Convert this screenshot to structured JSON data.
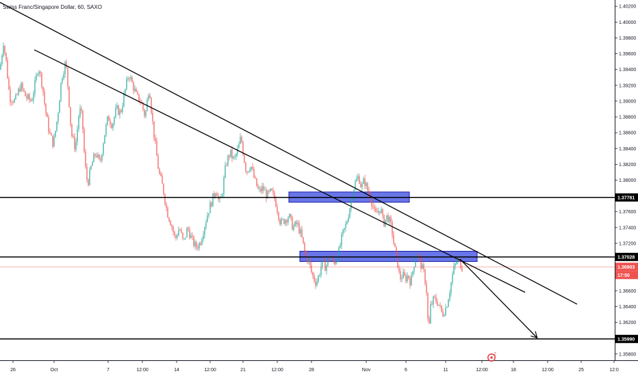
{
  "title": "Swiss Franc/Singapore Dollar, 60, SAXO",
  "colors": {
    "up": "#26a69a",
    "down": "#ef5350",
    "zone_fill": "#3d4fe0",
    "zone_stroke": "#1a1aa8",
    "line": "#000000",
    "current": "#ef5350",
    "grid": "#f0f3fa",
    "logo": "#e04545"
  },
  "chart_data": {
    "type": "candlestick",
    "symbol": "Swiss Franc/Singapore Dollar",
    "interval": "60",
    "source": "SAXO",
    "x_ticks": [
      "26",
      "Oct",
      "7",
      "12:00",
      "14",
      "12:00",
      "21",
      "12:00",
      "28",
      "Nov",
      "6",
      "11",
      "12:00",
      "18",
      "12:00",
      "25",
      "12:0"
    ],
    "y_ticks": [
      "1.40200",
      "1.40000",
      "1.39800",
      "1.39600",
      "1.39400",
      "1.39200",
      "1.39000",
      "1.38800",
      "1.38600",
      "1.38400",
      "1.38200",
      "1.38000",
      "1.37600",
      "1.37400",
      "1.37200",
      "1.36600",
      "1.36400",
      "1.36200",
      "1.35800"
    ],
    "ylim": [
      1.3572,
      1.4028
    ],
    "price_path": [
      [
        0,
        1.394
      ],
      [
        5,
        1.3975
      ],
      [
        9,
        1.395
      ],
      [
        14,
        1.3905
      ],
      [
        22,
        1.39
      ],
      [
        30,
        1.392
      ],
      [
        38,
        1.3905
      ],
      [
        46,
        1.39
      ],
      [
        52,
        1.3925
      ],
      [
        56,
        1.3945
      ],
      [
        62,
        1.392
      ],
      [
        66,
        1.389
      ],
      [
        72,
        1.386
      ],
      [
        78,
        1.3845
      ],
      [
        84,
        1.388
      ],
      [
        90,
        1.393
      ],
      [
        96,
        1.395
      ],
      [
        100,
        1.391
      ],
      [
        104,
        1.386
      ],
      [
        110,
        1.384
      ],
      [
        116,
        1.389
      ],
      [
        120,
        1.388
      ],
      [
        124,
        1.382
      ],
      [
        128,
        1.3795
      ],
      [
        134,
        1.382
      ],
      [
        140,
        1.3835
      ],
      [
        146,
        1.382
      ],
      [
        152,
        1.3855
      ],
      [
        158,
        1.388
      ],
      [
        164,
        1.387
      ],
      [
        170,
        1.389
      ],
      [
        176,
        1.3885
      ],
      [
        182,
        1.391
      ],
      [
        188,
        1.3935
      ],
      [
        194,
        1.392
      ],
      [
        200,
        1.3905
      ],
      [
        206,
        1.39
      ],
      [
        212,
        1.388
      ],
      [
        218,
        1.392
      ],
      [
        222,
        1.388
      ],
      [
        226,
        1.385
      ],
      [
        232,
        1.381
      ],
      [
        238,
        1.379
      ],
      [
        244,
        1.376
      ],
      [
        250,
        1.3745
      ],
      [
        256,
        1.3725
      ],
      [
        262,
        1.374
      ],
      [
        268,
        1.372
      ],
      [
        274,
        1.374
      ],
      [
        280,
        1.3725
      ],
      [
        286,
        1.3715
      ],
      [
        292,
        1.372
      ],
      [
        298,
        1.374
      ],
      [
        304,
        1.376
      ],
      [
        310,
        1.3775
      ],
      [
        316,
        1.379
      ],
      [
        320,
        1.377
      ],
      [
        324,
        1.378
      ],
      [
        330,
        1.382
      ],
      [
        336,
        1.3835
      ],
      [
        342,
        1.3825
      ],
      [
        348,
        1.384
      ],
      [
        352,
        1.3855
      ],
      [
        356,
        1.383
      ],
      [
        360,
        1.381
      ],
      [
        366,
        1.382
      ],
      [
        372,
        1.38
      ],
      [
        378,
        1.3785
      ],
      [
        384,
        1.379
      ],
      [
        390,
        1.378
      ],
      [
        396,
        1.3785
      ],
      [
        402,
        1.3775
      ],
      [
        406,
        1.376
      ],
      [
        410,
        1.3745
      ],
      [
        416,
        1.375
      ],
      [
        422,
        1.3755
      ],
      [
        428,
        1.374
      ],
      [
        434,
        1.3745
      ],
      [
        440,
        1.373
      ],
      [
        446,
        1.3705
      ],
      [
        450,
        1.37
      ],
      [
        456,
        1.368
      ],
      [
        462,
        1.367
      ],
      [
        466,
        1.368
      ],
      [
        470,
        1.3695
      ],
      [
        476,
        1.369
      ],
      [
        482,
        1.3705
      ],
      [
        488,
        1.3695
      ],
      [
        494,
        1.3705
      ],
      [
        500,
        1.373
      ],
      [
        506,
        1.3745
      ],
      [
        512,
        1.377
      ],
      [
        518,
        1.3795
      ],
      [
        524,
        1.3805
      ],
      [
        528,
        1.379
      ],
      [
        532,
        1.38
      ],
      [
        536,
        1.379
      ],
      [
        540,
        1.378
      ],
      [
        544,
        1.377
      ],
      [
        548,
        1.3755
      ],
      [
        552,
        1.376
      ],
      [
        556,
        1.3765
      ],
      [
        560,
        1.3745
      ],
      [
        566,
        1.3755
      ],
      [
        572,
        1.374
      ],
      [
        576,
        1.3715
      ],
      [
        580,
        1.37
      ],
      [
        584,
        1.3675
      ],
      [
        588,
        1.368
      ],
      [
        592,
        1.3675
      ],
      [
        596,
        1.368
      ],
      [
        600,
        1.367
      ],
      [
        604,
        1.369
      ],
      [
        608,
        1.371
      ],
      [
        612,
        1.37
      ],
      [
        616,
        1.369
      ],
      [
        620,
        1.368
      ],
      [
        623,
        1.366
      ],
      [
        626,
        1.3605
      ],
      [
        629,
        1.364
      ],
      [
        634,
        1.365
      ],
      [
        640,
        1.3645
      ],
      [
        646,
        1.363
      ],
      [
        652,
        1.364
      ],
      [
        658,
        1.3665
      ],
      [
        662,
        1.3685
      ],
      [
        668,
        1.37
      ],
      [
        672,
        1.3695
      ],
      [
        675,
        1.369
      ]
    ],
    "horizontal_lines": [
      {
        "price": 1.37781,
        "label": "1.37781"
      },
      {
        "price": 1.37028,
        "label": "1.37028"
      },
      {
        "price": 1.3599,
        "label": "1.35990"
      }
    ],
    "current_price": {
      "price": 1.36903,
      "label": "1.36903",
      "countdown": "17:50"
    },
    "zones": [
      {
        "x_from": 422,
        "x_to": 598,
        "top": 1.3785,
        "bottom": 1.3772
      },
      {
        "x_from": 438,
        "x_to": 697,
        "top": 1.371,
        "bottom": 1.3697
      }
    ],
    "trendlines": [
      {
        "from": [
          0,
          1.4025
        ],
        "to": [
          843,
          1.3643
        ]
      },
      {
        "from": [
          50,
          1.3965
        ],
        "to": [
          767,
          1.3658
        ]
      },
      {
        "from": [
          672,
          1.37
        ],
        "to": [
          784,
          1.3601
        ],
        "arrow": true
      }
    ],
    "grid": false,
    "logo_badge": "2"
  }
}
